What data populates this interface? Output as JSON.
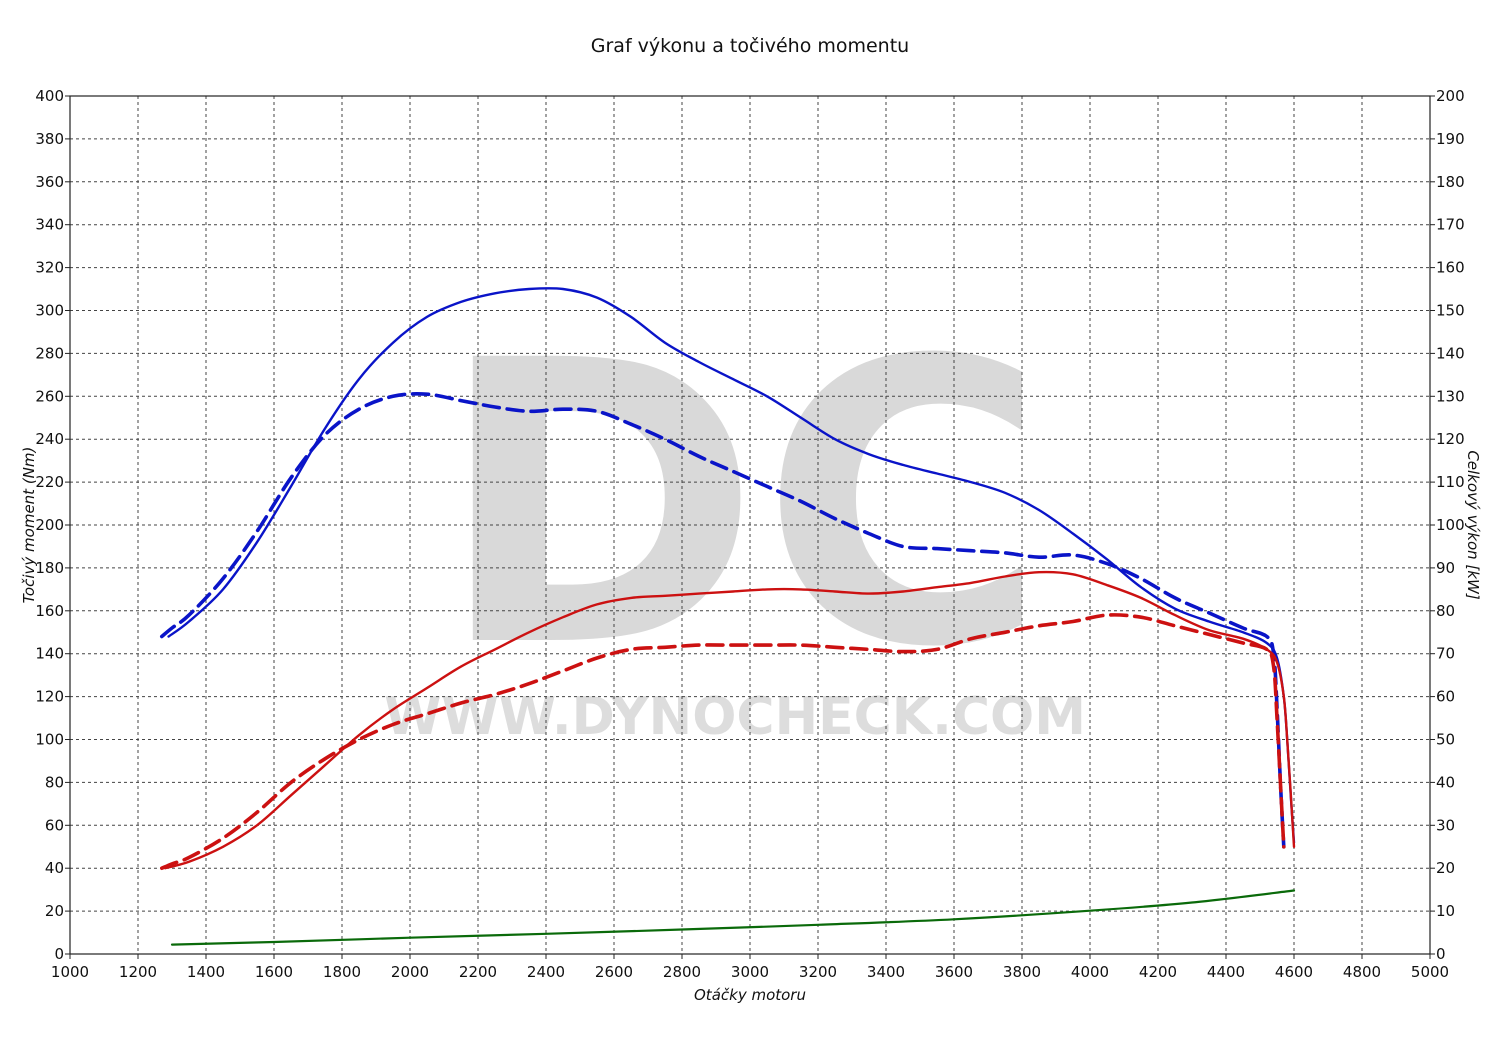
{
  "chart_data": {
    "type": "line",
    "title": "Graf výkonu a točivého momentu",
    "xlabel": "Otáčky motoru",
    "ylabel_left": "Točivý moment (Nm)",
    "ylabel_right": "Celkový výkon [kW]",
    "xlim": [
      1000,
      5000
    ],
    "ylim_left": [
      0,
      400
    ],
    "ylim_right": [
      0,
      200
    ],
    "x_ticks": [
      "1000",
      "1200",
      "1400",
      "1600",
      "1800",
      "2000",
      "2200",
      "2400",
      "2600",
      "2800",
      "3000",
      "3200",
      "3400",
      "3600",
      "3800",
      "4000",
      "4200",
      "4400",
      "4600",
      "4800",
      "5000"
    ],
    "y_ticks_left": [
      "0",
      "20",
      "40",
      "60",
      "80",
      "100",
      "120",
      "140",
      "160",
      "180",
      "200",
      "220",
      "240",
      "260",
      "280",
      "300",
      "320",
      "340",
      "360",
      "380",
      "400"
    ],
    "y_ticks_right": [
      "0",
      "10",
      "20",
      "30",
      "40",
      "50",
      "60",
      "70",
      "80",
      "90",
      "100",
      "110",
      "120",
      "130",
      "140",
      "150",
      "160",
      "170",
      "180",
      "190",
      "200"
    ],
    "grid": true,
    "watermark": {
      "letters": "DC",
      "url": "WWW.DYNOCHECK.COM"
    },
    "colors": {
      "torque": "#0a14c8",
      "power": "#cc1111",
      "loss": "#0a6a0a",
      "grid": "#444444"
    },
    "series": [
      {
        "key": "torque_solid",
        "axis": "left",
        "color": "#0a14c8",
        "style": "solid",
        "x": [
          1290,
          1350,
          1450,
          1550,
          1650,
          1750,
          1850,
          1950,
          2050,
          2150,
          2250,
          2350,
          2450,
          2550,
          2650,
          2750,
          2850,
          2950,
          3050,
          3150,
          3250,
          3350,
          3450,
          3550,
          3650,
          3750,
          3850,
          3950,
          4050,
          4150,
          4250,
          4350,
          4450,
          4520,
          4550,
          4570,
          4580,
          4590,
          4600
        ],
        "y": [
          148,
          155,
          170,
          192,
          218,
          245,
          268,
          285,
          297,
          304,
          308,
          310,
          310,
          306,
          297,
          285,
          276,
          268,
          260,
          250,
          240,
          233,
          228,
          224,
          220,
          215,
          207,
          196,
          184,
          171,
          161,
          155,
          150,
          145,
          138,
          120,
          100,
          75,
          52
        ]
      },
      {
        "key": "torque_dashed",
        "axis": "left",
        "color": "#0a14c8",
        "style": "dashed",
        "x": [
          1270,
          1300,
          1350,
          1450,
          1550,
          1650,
          1750,
          1850,
          1950,
          2050,
          2150,
          2250,
          2350,
          2450,
          2550,
          2650,
          2750,
          2850,
          2950,
          3050,
          3150,
          3250,
          3350,
          3450,
          3550,
          3650,
          3750,
          3850,
          3950,
          4050,
          4150,
          4250,
          4350,
          4450,
          4520,
          4540,
          4550,
          4560,
          4570
        ],
        "y": [
          148,
          152,
          158,
          175,
          197,
          222,
          242,
          254,
          260,
          261,
          258,
          255,
          253,
          254,
          253,
          247,
          240,
          232,
          225,
          218,
          211,
          203,
          196,
          190,
          189,
          188,
          187,
          185,
          186,
          182,
          175,
          166,
          159,
          152,
          148,
          140,
          115,
          80,
          50
        ]
      },
      {
        "key": "power_solid",
        "axis": "right",
        "color": "#cc1111",
        "style": "solid",
        "x": [
          1280,
          1350,
          1450,
          1550,
          1650,
          1750,
          1850,
          1950,
          2050,
          2150,
          2250,
          2350,
          2450,
          2550,
          2650,
          2750,
          2850,
          2950,
          3050,
          3150,
          3250,
          3350,
          3450,
          3550,
          3650,
          3750,
          3850,
          3950,
          4050,
          4150,
          4250,
          4350,
          4450,
          4520,
          4550,
          4570,
          4580,
          4590,
          4600
        ],
        "y": [
          20,
          21.5,
          25,
          30,
          37,
          44,
          51,
          57,
          62,
          67,
          71,
          75,
          78.5,
          81.5,
          83,
          83.5,
          84,
          84.5,
          85,
          85,
          84.5,
          84,
          84.5,
          85.5,
          86.5,
          88,
          89,
          88.5,
          86,
          83,
          79,
          75.5,
          73.5,
          71,
          68,
          60,
          50,
          38,
          25
        ]
      },
      {
        "key": "power_dashed",
        "axis": "right",
        "color": "#cc1111",
        "style": "dashed",
        "x": [
          1270,
          1300,
          1350,
          1450,
          1550,
          1650,
          1750,
          1850,
          1950,
          2050,
          2150,
          2250,
          2350,
          2450,
          2550,
          2650,
          2750,
          2850,
          2950,
          3050,
          3150,
          3250,
          3350,
          3450,
          3550,
          3650,
          3750,
          3850,
          3950,
          4050,
          4150,
          4250,
          4350,
          4450,
          4520,
          4540,
          4550,
          4560,
          4570
        ],
        "y": [
          20,
          21,
          22.5,
          27,
          33,
          40,
          45.5,
          50,
          53.5,
          56,
          58.5,
          60.5,
          63,
          66,
          69,
          71,
          71.5,
          72,
          72,
          72,
          72,
          71.5,
          71,
          70.5,
          71,
          73.5,
          75,
          76.5,
          77.5,
          79,
          78.5,
          76.5,
          74.5,
          72.5,
          71,
          67,
          55,
          40,
          25
        ]
      },
      {
        "key": "loss",
        "axis": "right",
        "color": "#0a6a0a",
        "style": "solid",
        "x": [
          1300,
          1600,
          2000,
          2400,
          2800,
          3200,
          3600,
          4000,
          4300,
          4600
        ],
        "y": [
          2.2,
          2.8,
          3.8,
          4.7,
          5.7,
          6.8,
          8.1,
          10.1,
          12,
          14.8
        ]
      }
    ]
  }
}
